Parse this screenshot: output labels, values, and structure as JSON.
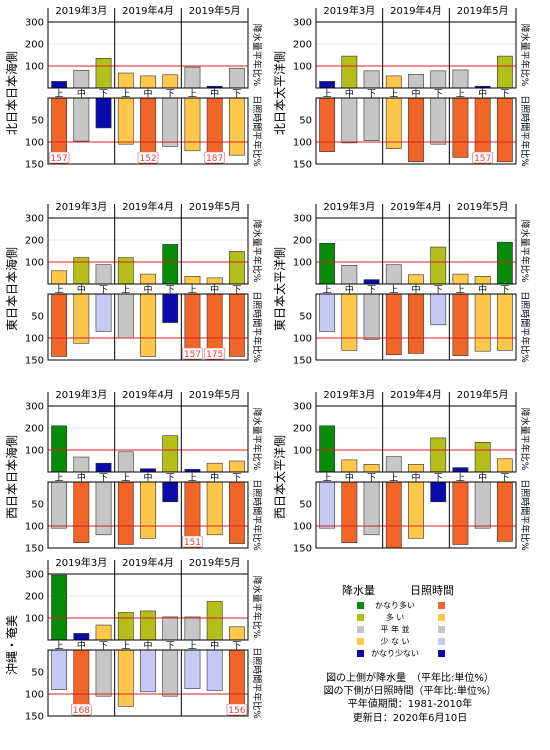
{
  "colors": {
    "rain": {
      "very_high": "#078c07",
      "high": "#b5bf1b",
      "normal": "#c6c6c6",
      "low": "#ffc84b",
      "very_low": "#0a0aaa"
    },
    "sun": {
      "very_high": "#f26528",
      "high": "#ffc84b",
      "normal": "#c6c6c6",
      "low": "#c8c8f4",
      "very_low": "#0a0aaa"
    },
    "reference_line": "#d42020"
  },
  "chart_data": [
    {
      "type": "bar",
      "region": "北日本日本海側",
      "months": [
        "2019年3月",
        "2019年4月",
        "2019年5月"
      ],
      "categories": [
        "上",
        "中",
        "下",
        "上",
        "中",
        "下",
        "上",
        "中",
        "下"
      ],
      "rain_axis_label": "降水量平年比%",
      "sun_axis_label": "日照時間平年比%",
      "rain_ticks": [
        100,
        200,
        300
      ],
      "sun_ticks": [
        50,
        100,
        150
      ],
      "rain_ylim": [
        0,
        300
      ],
      "sun_ylim": [
        0,
        150
      ],
      "rain": [
        30,
        80,
        135,
        68,
        55,
        60,
        95,
        8,
        90
      ],
      "rain_class": [
        "very_low",
        "normal",
        "high",
        "low",
        "low",
        "low",
        "normal",
        "very_low",
        "normal"
      ],
      "sun": [
        157,
        98,
        68,
        105,
        152,
        110,
        120,
        187,
        130
      ],
      "sun_class": [
        "very_high",
        "normal",
        "very_low",
        "high",
        "very_high",
        "normal",
        "high",
        "very_high",
        "high"
      ],
      "overflow_labels": [
        "157",
        "",
        "",
        "",
        "152",
        "",
        "",
        "187",
        ""
      ]
    },
    {
      "type": "bar",
      "region": "北日本太平洋側",
      "months": [
        "2019年3月",
        "2019年4月",
        "2019年5月"
      ],
      "categories": [
        "上",
        "中",
        "下",
        "上",
        "中",
        "下",
        "上",
        "中",
        "下"
      ],
      "rain_axis_label": "降水量平年比%",
      "sun_axis_label": "日照時間平年比%",
      "rain_ticks": [
        100,
        200,
        300
      ],
      "sun_ticks": [
        50,
        100,
        150
      ],
      "rain_ylim": [
        0,
        300
      ],
      "sun_ylim": [
        0,
        150
      ],
      "rain": [
        30,
        145,
        78,
        55,
        62,
        78,
        82,
        8,
        145
      ],
      "rain_class": [
        "very_low",
        "high",
        "normal",
        "low",
        "normal",
        "normal",
        "normal",
        "very_low",
        "high"
      ],
      "sun": [
        122,
        102,
        97,
        115,
        145,
        105,
        135,
        157,
        145
      ],
      "sun_class": [
        "very_high",
        "normal",
        "normal",
        "high",
        "very_high",
        "normal",
        "very_high",
        "very_high",
        "very_high"
      ],
      "overflow_labels": [
        "",
        "",
        "",
        "",
        "",
        "",
        "",
        "157",
        ""
      ]
    },
    {
      "type": "bar",
      "region": "東日本日本海側",
      "months": [
        "2019年3月",
        "2019年4月",
        "2019年5月"
      ],
      "categories": [
        "上",
        "中",
        "下",
        "上",
        "中",
        "下",
        "上",
        "中",
        "下"
      ],
      "rain_axis_label": "降水量平年比%",
      "sun_axis_label": "日照時間平年比%",
      "rain_ticks": [
        100,
        200,
        300
      ],
      "sun_ticks": [
        50,
        100,
        150
      ],
      "rain_ylim": [
        0,
        300
      ],
      "sun_ylim": [
        0,
        150
      ],
      "rain": [
        60,
        120,
        88,
        120,
        45,
        180,
        35,
        28,
        148
      ],
      "rain_class": [
        "low",
        "high",
        "normal",
        "high",
        "low",
        "very_high",
        "low",
        "low",
        "high"
      ],
      "sun": [
        142,
        112,
        85,
        100,
        142,
        65,
        157,
        175,
        142
      ],
      "sun_class": [
        "very_high",
        "high",
        "low",
        "normal",
        "high",
        "very_low",
        "very_high",
        "very_high",
        "very_high"
      ],
      "overflow_labels": [
        "",
        "",
        "",
        "",
        "",
        "",
        "157",
        "175",
        ""
      ]
    },
    {
      "type": "bar",
      "region": "東日本太平洋側",
      "months": [
        "2019年3月",
        "2019年4月",
        "2019年5月"
      ],
      "categories": [
        "上",
        "中",
        "下",
        "上",
        "中",
        "下",
        "上",
        "中",
        "下"
      ],
      "rain_axis_label": "降水量平年比%",
      "sun_axis_label": "日照時間平年比%",
      "rain_ticks": [
        100,
        200,
        300
      ],
      "sun_ticks": [
        50,
        100,
        150
      ],
      "rain_ylim": [
        0,
        300
      ],
      "sun_ylim": [
        0,
        150
      ],
      "rain": [
        185,
        85,
        20,
        88,
        42,
        168,
        45,
        35,
        190
      ],
      "rain_class": [
        "very_high",
        "normal",
        "very_low",
        "normal",
        "low",
        "high",
        "low",
        "low",
        "very_high"
      ],
      "sun": [
        85,
        128,
        103,
        138,
        135,
        70,
        140,
        130,
        128
      ],
      "sun_class": [
        "low",
        "high",
        "normal",
        "very_high",
        "very_high",
        "low",
        "very_high",
        "high",
        "high"
      ],
      "overflow_labels": [
        "",
        "",
        "",
        "",
        "",
        "",
        "",
        "",
        ""
      ]
    },
    {
      "type": "bar",
      "region": "西日本日本海側",
      "months": [
        "2019年3月",
        "2019年4月",
        "2019年5月"
      ],
      "categories": [
        "上",
        "中",
        "下",
        "上",
        "中",
        "下",
        "上",
        "中",
        "下"
      ],
      "rain_axis_label": "降水量平年比%",
      "sun_axis_label": "日照時間平年比%",
      "rain_ticks": [
        100,
        200,
        300
      ],
      "sun_ticks": [
        50,
        100,
        150
      ],
      "rain_ylim": [
        0,
        300
      ],
      "sun_ylim": [
        0,
        150
      ],
      "rain": [
        210,
        68,
        40,
        92,
        15,
        165,
        12,
        40,
        50
      ],
      "rain_class": [
        "very_high",
        "normal",
        "very_low",
        "normal",
        "very_low",
        "high",
        "very_low",
        "low",
        "low"
      ],
      "sun": [
        105,
        138,
        120,
        142,
        128,
        45,
        151,
        120,
        140
      ],
      "sun_class": [
        "normal",
        "very_high",
        "normal",
        "very_high",
        "high",
        "very_low",
        "very_high",
        "high",
        "very_high"
      ],
      "overflow_labels": [
        "",
        "",
        "",
        "",
        "",
        "",
        "151",
        "",
        ""
      ]
    },
    {
      "type": "bar",
      "region": "西日本太平洋側",
      "months": [
        "2019年3月",
        "2019年4月",
        "2019年5月"
      ],
      "categories": [
        "上",
        "中",
        "下",
        "上",
        "中",
        "下",
        "上",
        "中",
        "下"
      ],
      "rain_axis_label": "降水量平年比%",
      "sun_axis_label": "日照時間平年比%",
      "rain_ticks": [
        100,
        200,
        300
      ],
      "sun_ticks": [
        50,
        100,
        150
      ],
      "rain_ylim": [
        0,
        300
      ],
      "sun_ylim": [
        0,
        150
      ],
      "rain": [
        210,
        55,
        35,
        70,
        35,
        155,
        20,
        135,
        60
      ],
      "rain_class": [
        "very_high",
        "low",
        "low",
        "normal",
        "low",
        "high",
        "very_low",
        "high",
        "low"
      ],
      "sun": [
        105,
        138,
        120,
        150,
        128,
        45,
        142,
        105,
        135
      ],
      "sun_class": [
        "low",
        "very_high",
        "normal",
        "very_high",
        "high",
        "very_low",
        "very_high",
        "normal",
        "very_high"
      ],
      "overflow_labels": [
        "",
        "",
        "",
        "",
        "",
        "",
        "",
        "",
        ""
      ]
    },
    {
      "type": "bar",
      "region": "沖縄・奄美",
      "months": [
        "2019年3月",
        "2019年4月",
        "2019年5月"
      ],
      "categories": [
        "上",
        "中",
        "下",
        "上",
        "中",
        "下",
        "上",
        "中",
        "下"
      ],
      "rain_axis_label": "降水量平年比%",
      "sun_axis_label": "日照時間平年比%",
      "rain_ticks": [
        100,
        200,
        300
      ],
      "sun_ticks": [
        50,
        100,
        150
      ],
      "rain_ylim": [
        0,
        300
      ],
      "sun_ylim": [
        0,
        150
      ],
      "rain": [
        295,
        30,
        68,
        125,
        132,
        105,
        105,
        175,
        60
      ],
      "rain_class": [
        "very_high",
        "very_low",
        "low",
        "high",
        "high",
        "normal",
        "normal",
        "high",
        "low"
      ],
      "sun": [
        90,
        168,
        105,
        128,
        95,
        105,
        88,
        92,
        156
      ],
      "sun_class": [
        "low",
        "very_high",
        "normal",
        "high",
        "low",
        "normal",
        "low",
        "low",
        "very_high"
      ],
      "overflow_labels": [
        "",
        "168",
        "",
        "",
        "",
        "",
        "",
        "",
        "156"
      ]
    }
  ],
  "legend": {
    "rain_header": "降水量",
    "sun_header": "日照時間",
    "rows": [
      {
        "label": "かなり多い",
        "rain": "very_high",
        "sun": "very_high"
      },
      {
        "label": "多 い",
        "rain": "high",
        "sun": "high"
      },
      {
        "label": "平 年 並",
        "rain": "normal",
        "sun": "normal"
      },
      {
        "label": "少 な い",
        "rain": "low",
        "sun": "low"
      },
      {
        "label": "かなり少ない",
        "rain": "very_low",
        "sun": "very_low"
      }
    ]
  },
  "notes": {
    "upper": "図の上側が降水量　（平年比:単位%）",
    "lower": "図の下側が日照時間（平年比:単位%）",
    "period": "平年値期間：1981-2010年",
    "updated": "更新日：2020年6月10日"
  }
}
